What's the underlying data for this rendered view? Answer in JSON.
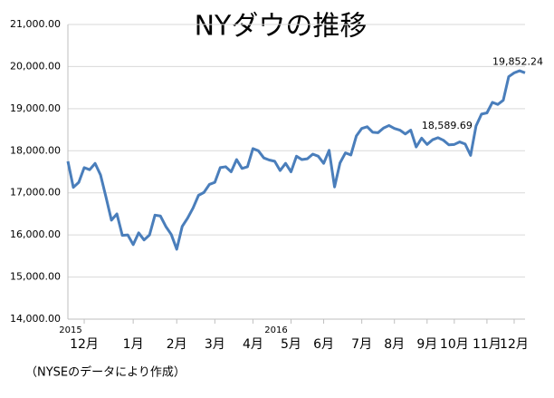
{
  "chart_data": {
    "type": "line",
    "title": "NYダウの推移",
    "categories": [
      null,
      null,
      null,
      "12月",
      null,
      null,
      null,
      null,
      null,
      null,
      null,
      null,
      "1月",
      null,
      null,
      null,
      null,
      null,
      null,
      null,
      "2月",
      null,
      null,
      null,
      null,
      null,
      null,
      "3月",
      null,
      null,
      null,
      null,
      null,
      null,
      "4月",
      null,
      null,
      null,
      null,
      null,
      null,
      "5月",
      null,
      null,
      null,
      null,
      null,
      "6月",
      null,
      null,
      null,
      null,
      null,
      null,
      "7月",
      null,
      null,
      null,
      null,
      null,
      "8月",
      null,
      null,
      null,
      null,
      null,
      "9月",
      null,
      null,
      null,
      null,
      "10月",
      null,
      null,
      null,
      null,
      null,
      "11月",
      null,
      null,
      null,
      null,
      "12月",
      null,
      null
    ],
    "year_labels": [
      "2015",
      "2016"
    ],
    "series": [
      {
        "color": "#4a7ebb",
        "values": [
          17750,
          17130,
          17250,
          17600,
          17550,
          17700,
          17425,
          16900,
          16350,
          16500,
          15990,
          16000,
          15770,
          16050,
          15880,
          16000,
          16470,
          16450,
          16200,
          16010,
          15660,
          16200,
          16400,
          16640,
          16940,
          17010,
          17200,
          17250,
          17600,
          17620,
          17500,
          17790,
          17580,
          17620,
          18050,
          18000,
          17830,
          17780,
          17750,
          17530,
          17700,
          17500,
          17870,
          17790,
          17810,
          17920,
          17870,
          17700,
          18010,
          17140,
          17710,
          17950,
          17900,
          18350,
          18530,
          18570,
          18440,
          18430,
          18540,
          18600,
          18530,
          18490,
          18400,
          18490,
          18090,
          18300,
          18150,
          18260,
          18310,
          18250,
          18140,
          18150,
          18210,
          18160,
          17890,
          18589.69,
          18870,
          18900,
          19150,
          19100,
          19200,
          19760,
          19850,
          19900,
          19852.24
        ],
        "value_labels": [
          null,
          null,
          null,
          null,
          null,
          null,
          null,
          null,
          null,
          null,
          null,
          null,
          null,
          null,
          null,
          null,
          null,
          null,
          null,
          null,
          null,
          null,
          null,
          null,
          null,
          null,
          null,
          null,
          null,
          null,
          null,
          null,
          null,
          null,
          null,
          null,
          null,
          null,
          null,
          null,
          null,
          null,
          null,
          null,
          null,
          null,
          null,
          null,
          null,
          null,
          null,
          null,
          null,
          null,
          null,
          null,
          null,
          null,
          null,
          null,
          null,
          null,
          null,
          null,
          null,
          null,
          null,
          null,
          null,
          null,
          null,
          null,
          null,
          null,
          null,
          "18,589.69",
          null,
          null,
          null,
          null,
          null,
          null,
          null,
          null,
          "19,852.24"
        ]
      }
    ],
    "ylim": [
      14000,
      21000
    ],
    "yticks": [
      {
        "value": 14000,
        "label": "14,000.00"
      },
      {
        "value": 15000,
        "label": "15,000.00"
      },
      {
        "value": 16000,
        "label": "16,000.00"
      },
      {
        "value": 17000,
        "label": "17,000.00"
      },
      {
        "value": 18000,
        "label": "18,000.00"
      },
      {
        "value": 19000,
        "label": "19,000.00"
      },
      {
        "value": 20000,
        "label": "20,000.00"
      },
      {
        "value": 21000,
        "label": "21,000.00"
      }
    ],
    "grid": true,
    "source": "（NYSEのデータにより作成）"
  }
}
